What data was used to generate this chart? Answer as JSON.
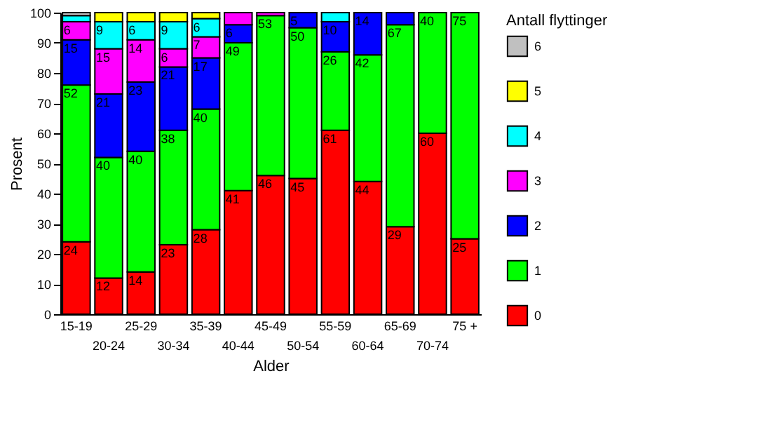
{
  "chart_data": {
    "type": "bar",
    "stacked": true,
    "xlabel": "Alder",
    "ylabel": "Prosent",
    "legend_title": "Antall flyttinger",
    "legend": "right",
    "grid": false,
    "categories": [
      "15-19",
      "20-24",
      "25-29",
      "30-34",
      "35-39",
      "40-44",
      "45-49",
      "50-54",
      "55-59",
      "60-64",
      "65-69",
      "70-74",
      "75 +"
    ],
    "ylim": [
      0,
      100
    ],
    "yticks": [
      0,
      10,
      20,
      30,
      40,
      50,
      60,
      70,
      80,
      90,
      100
    ],
    "series": [
      {
        "name": "0",
        "color": "#ff0000",
        "values": [
          24,
          12,
          14,
          23,
          28,
          41,
          46,
          45,
          61,
          44,
          29,
          60,
          25
        ],
        "value_labels": [
          "24",
          "12",
          "14",
          "23",
          "28",
          "41",
          "46",
          "45",
          "61",
          "44",
          "29",
          "60",
          "25"
        ]
      },
      {
        "name": "1",
        "color": "#00ff00",
        "values": [
          52,
          40,
          40,
          38,
          40,
          49,
          53,
          50,
          26,
          42,
          67,
          40,
          75
        ],
        "value_labels": [
          "52",
          "40",
          "40",
          "38",
          "40",
          "49",
          "53",
          "50",
          "26",
          "42",
          "67",
          "40",
          "75"
        ]
      },
      {
        "name": "2",
        "color": "#0000ff",
        "values": [
          15,
          21,
          23,
          21,
          17,
          6,
          0,
          5,
          10,
          14,
          4,
          0,
          0
        ],
        "value_labels": [
          "15",
          "21",
          "23",
          "21",
          "17",
          "6",
          null,
          "5",
          "10",
          "14",
          null,
          null,
          null
        ]
      },
      {
        "name": "3",
        "color": "#ff00ff",
        "values": [
          6,
          15,
          14,
          6,
          7,
          4,
          1,
          0,
          0,
          0,
          0,
          0,
          0
        ],
        "value_labels": [
          "6",
          "15",
          "14",
          "6",
          "7",
          null,
          null,
          null,
          null,
          null,
          null,
          null,
          null
        ]
      },
      {
        "name": "4",
        "color": "#00ffff",
        "values": [
          2,
          9,
          6,
          9,
          6,
          0,
          0,
          0,
          3,
          0,
          0,
          0,
          0
        ],
        "value_labels": [
          null,
          "9",
          "6",
          "9",
          "6",
          null,
          null,
          null,
          null,
          null,
          null,
          null,
          null
        ]
      },
      {
        "name": "5",
        "color": "#ffff00",
        "values": [
          0,
          3,
          3,
          3,
          2,
          0,
          0,
          0,
          0,
          0,
          0,
          0,
          0
        ],
        "value_labels": [
          null,
          null,
          null,
          null,
          null,
          null,
          null,
          null,
          null,
          null,
          null,
          null,
          null
        ]
      },
      {
        "name": "6",
        "color": "#c0c0c0",
        "values": [
          1,
          0,
          0,
          0,
          0,
          0,
          0,
          0,
          0,
          0,
          0,
          0,
          0
        ],
        "value_labels": [
          null,
          null,
          null,
          null,
          null,
          null,
          null,
          null,
          null,
          null,
          null,
          null,
          null
        ]
      }
    ]
  }
}
